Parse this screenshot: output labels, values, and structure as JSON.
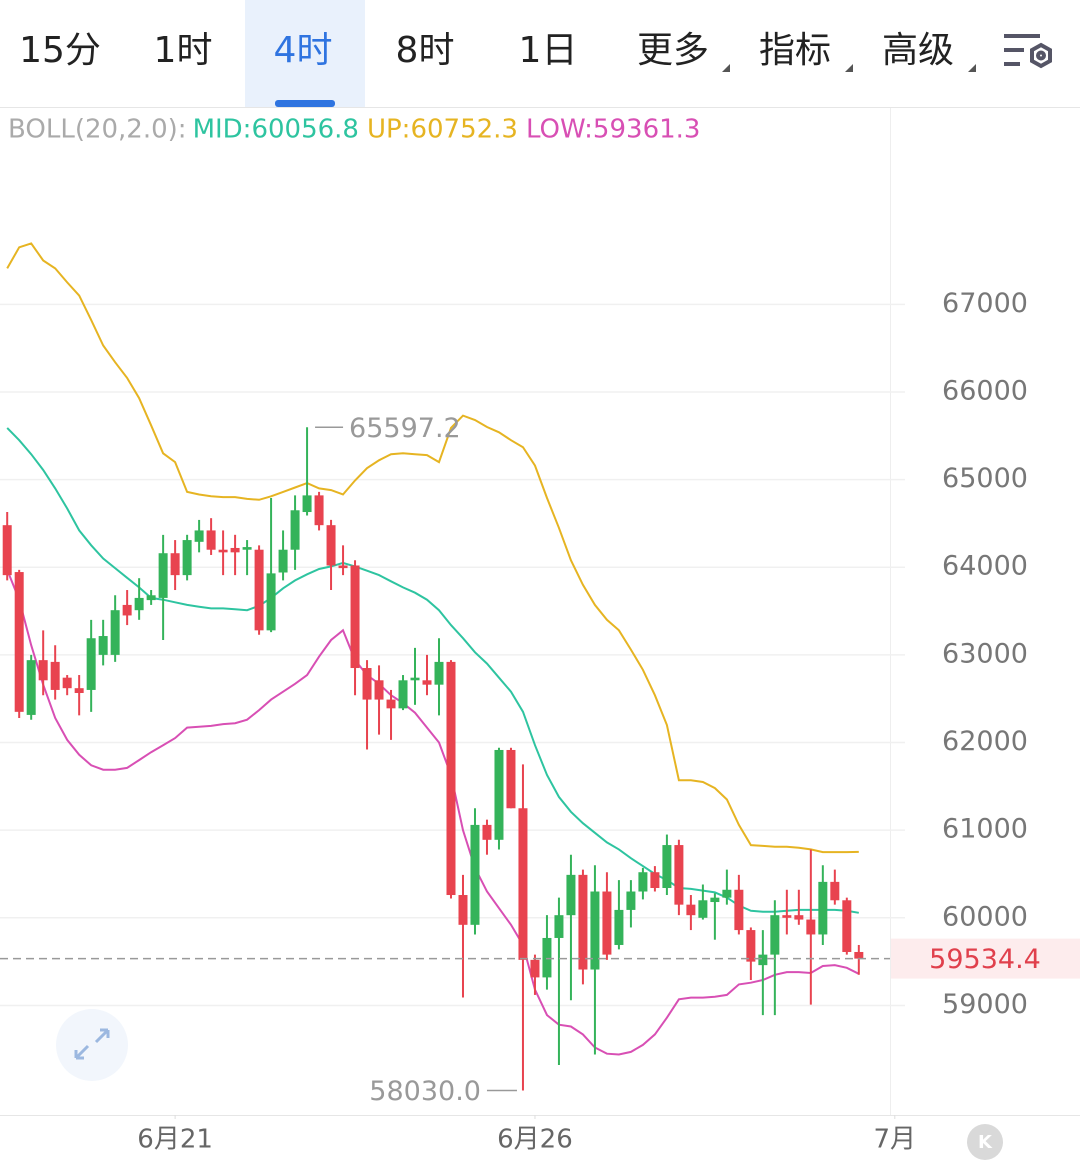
{
  "toolbar": {
    "tabs": [
      "15分",
      "1时",
      "4时",
      "8时",
      "1日",
      "更多",
      "指标",
      "高级"
    ],
    "selected": 2
  },
  "chart_data": {
    "type": "candlestick",
    "indicator": "BOLL(20,2.0):",
    "xlim": [
      -0.6,
      73.6
    ],
    "xticks": [
      {
        "value": 14,
        "label": "6月21"
      },
      {
        "value": 44,
        "label": "6月26"
      },
      {
        "value": 74,
        "label": "7月"
      }
    ],
    "ylim": [
      57750,
      69240
    ],
    "yticks": [
      59000,
      60000,
      61000,
      62000,
      63000,
      64000,
      65000,
      66000,
      67000
    ],
    "grid": true,
    "up_color": "#34b35a",
    "down_color": "#e8434f",
    "open": [
      64480,
      63945,
      62315,
      62940,
      62920,
      62740,
      62620,
      62600,
      63000,
      63000,
      63570,
      63510,
      63625,
      63650,
      64160,
      63910,
      64290,
      64420,
      64200,
      64220,
      64200,
      64200,
      63280,
      63940,
      64200,
      64630,
      64820,
      64480,
      64020,
      64020,
      62850,
      62710,
      62490,
      62390,
      62710,
      62710,
      62660,
      62920,
      60260,
      59920,
      61060,
      60890,
      61915,
      61250,
      59520,
      59320,
      59770,
      60030,
      60490,
      59410,
      60300,
      59690,
      60090,
      60300,
      60520,
      60340,
      60830,
      60150,
      60000,
      60180,
      60230,
      60320,
      59860,
      59460,
      59580,
      60030,
      60030,
      59980,
      59810,
      60410,
      60200,
      59610
    ],
    "high": [
      64630,
      63970,
      63000,
      63280,
      63110,
      62770,
      62770,
      63400,
      63400,
      63680,
      63740,
      63875,
      63740,
      64370,
      64310,
      64370,
      64540,
      64560,
      64420,
      64370,
      64310,
      64250,
      64790,
      64420,
      64820,
      65597.2,
      64860,
      64540,
      64250,
      64080,
      62940,
      62880,
      62600,
      62770,
      63080,
      63000,
      63190,
      62940,
      60490,
      61250,
      61120,
      61940,
      61940,
      61750,
      59580,
      60030,
      60230,
      60720,
      60550,
      60600,
      60520,
      60430,
      60430,
      60570,
      60590,
      60950,
      60890,
      60260,
      60380,
      60280,
      60550,
      60490,
      59890,
      59860,
      60200,
      60320,
      60320,
      60780,
      60600,
      60550,
      60230,
      59690
    ],
    "low": [
      63850,
      62280,
      62260,
      62540,
      62490,
      62540,
      62310,
      62350,
      62880,
      62920,
      63340,
      63400,
      63570,
      63170,
      63740,
      63850,
      64170,
      64140,
      63910,
      63910,
      63910,
      63230,
      63260,
      63850,
      63970,
      64590,
      64420,
      63740,
      63910,
      62540,
      61920,
      62090,
      62030,
      62370,
      62430,
      62540,
      62310,
      60220,
      59090,
      59810,
      60720,
      60780,
      61250,
      58030,
      59120,
      59180,
      58320,
      59060,
      59240,
      58440,
      59520,
      59640,
      59890,
      60210,
      60300,
      60260,
      60030,
      59860,
      59980,
      59750,
      60150,
      59810,
      59290,
      58890,
      58890,
      59810,
      59920,
      59010,
      59690,
      60150,
      59580,
      59350
    ],
    "close": [
      63910,
      62350,
      62940,
      62710,
      62600,
      62620,
      62565,
      63190,
      63215,
      63510,
      63450,
      63650,
      63680,
      64160,
      63910,
      64310,
      64420,
      64200,
      64170,
      64170,
      64230,
      63280,
      63930,
      64200,
      64650,
      64820,
      64480,
      64020,
      63990,
      62850,
      62490,
      62490,
      62390,
      62710,
      62740,
      62660,
      62920,
      60260,
      59920,
      61060,
      60890,
      61915,
      61250,
      59520,
      59320,
      59770,
      60030,
      60490,
      59410,
      60300,
      59580,
      60090,
      60300,
      60520,
      60340,
      60830,
      60150,
      60030,
      60200,
      60230,
      60320,
      59860,
      59500,
      59580,
      60030,
      60000,
      59980,
      59810,
      60410,
      60200,
      59610,
      59534.4
    ],
    "bands": [
      {
        "legend": "MID:60056.8",
        "color": "#2ec4a0",
        "values": [
          65590,
          65450,
          65290,
          65110,
          64900,
          64670,
          64420,
          64250,
          64100,
          63990,
          63880,
          63770,
          63650,
          63630,
          63600,
          63570,
          63550,
          63530,
          63530,
          63520,
          63510,
          63560,
          63650,
          63760,
          63850,
          63920,
          63980,
          64010,
          64050,
          64010,
          63960,
          63910,
          63840,
          63770,
          63710,
          63630,
          63510,
          63340,
          63190,
          63030,
          62900,
          62740,
          62580,
          62350,
          61970,
          61630,
          61380,
          61210,
          61080,
          60970,
          60860,
          60780,
          60680,
          60590,
          60500,
          60430,
          60340,
          60330,
          60310,
          60290,
          60230,
          60140,
          60080,
          60070,
          60070,
          60080,
          60090,
          60090,
          60090,
          60090,
          60080,
          60056.8
        ]
      },
      {
        "legend": "UP:60752.3",
        "color": "#e6b422",
        "values": [
          67410,
          67650,
          67695,
          67500,
          67410,
          67250,
          67100,
          66820,
          66530,
          66340,
          66160,
          65930,
          65620,
          65300,
          65200,
          64860,
          64830,
          64810,
          64800,
          64800,
          64780,
          64770,
          64810,
          64860,
          64910,
          64960,
          64900,
          64880,
          64830,
          64990,
          65130,
          65220,
          65290,
          65300,
          65290,
          65280,
          65200,
          65590,
          65730,
          65680,
          65600,
          65540,
          65450,
          65370,
          65160,
          64790,
          64450,
          64080,
          63800,
          63570,
          63400,
          63280,
          63060,
          62830,
          62540,
          62200,
          61570,
          61570,
          61550,
          61480,
          61350,
          61060,
          60830,
          60820,
          60810,
          60810,
          60800,
          60780,
          60750,
          60750,
          60750,
          60752.3
        ]
      },
      {
        "legend": "LOW:59361.3",
        "color": "#d84fb4",
        "values": [
          63970,
          63630,
          63110,
          62660,
          62280,
          62030,
          61860,
          61740,
          61690,
          61690,
          61710,
          61800,
          61890,
          61970,
          62050,
          62170,
          62180,
          62190,
          62210,
          62220,
          62260,
          62370,
          62490,
          62580,
          62670,
          62770,
          62980,
          63170,
          63280,
          62940,
          62770,
          62670,
          62540,
          62450,
          62340,
          62170,
          62000,
          61630,
          61000,
          60570,
          60300,
          60110,
          59920,
          59690,
          59180,
          58890,
          58780,
          58760,
          58670,
          58520,
          58450,
          58440,
          58470,
          58550,
          58670,
          58860,
          59070,
          59090,
          59090,
          59100,
          59120,
          59240,
          59260,
          59290,
          59350,
          59380,
          59380,
          59370,
          59450,
          59460,
          59430,
          59361.3
        ]
      }
    ],
    "last_price": 59534.4,
    "high_label": 65597.2,
    "low_label": {
      "value": 58030,
      "label": "58030.0"
    }
  },
  "k_button": "K"
}
